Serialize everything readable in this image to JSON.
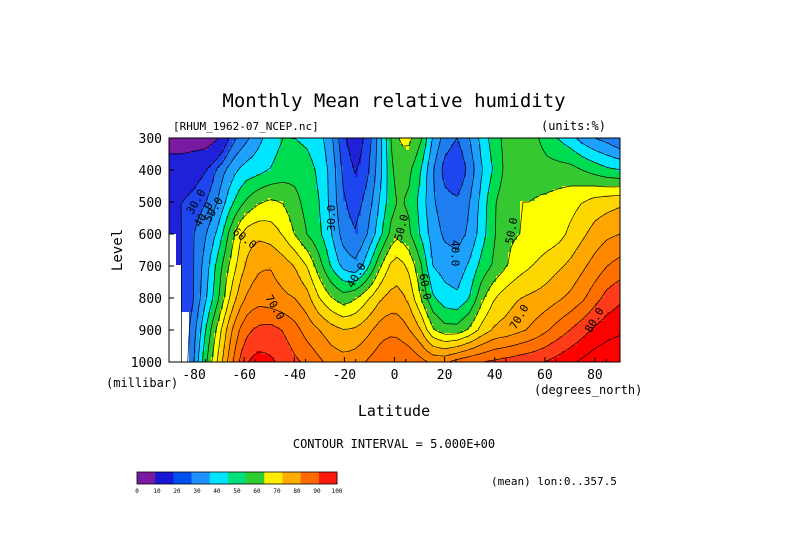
{
  "chart_data": {
    "type": "contour",
    "title": "Monthly Mean relative humidity",
    "file_label": "[RHUM_1962-07_NCEP.nc]",
    "units_label": "(units:%)",
    "xlabel": "Latitude",
    "x_units": "(degrees_north)",
    "ylabel": "Level",
    "y_units": "(millibar)",
    "xlim": [
      -90,
      90
    ],
    "ylim": [
      1000,
      300
    ],
    "x_ticks": [
      -80,
      -60,
      -40,
      -20,
      0,
      20,
      40,
      60,
      80
    ],
    "y_ticks": [
      300,
      400,
      500,
      600,
      700,
      800,
      900,
      1000
    ],
    "x_tick_labels": [
      "-80",
      "-60",
      "-40",
      "-20",
      "0",
      "20",
      "40",
      "60",
      "80"
    ],
    "y_tick_labels": [
      "300",
      "400",
      "500",
      "600",
      "700",
      "800",
      "900",
      "1000"
    ],
    "contour_interval_text": "CONTOUR INTERVAL = 5.000E+00",
    "mean_text": "(mean) lon:0..357.5",
    "contour_labels": [
      {
        "text": "30.0",
        "lat": -79,
        "lev": 500,
        "rot": -60
      },
      {
        "text": "40.0",
        "lat": -76,
        "lev": 540,
        "rot": -60
      },
      {
        "text": "50.0",
        "lat": -72,
        "lev": 525,
        "rot": -60
      },
      {
        "text": "60.0",
        "lat": -60,
        "lev": 615,
        "rot": 38
      },
      {
        "text": "70.0",
        "lat": -48,
        "lev": 830,
        "rot": 60
      },
      {
        "text": "30.0",
        "lat": -25,
        "lev": 550,
        "rot": -90
      },
      {
        "text": "40.0",
        "lat": -15,
        "lev": 730,
        "rot": -60
      },
      {
        "text": "50.0",
        "lat": 3,
        "lev": 580,
        "rot": -75
      },
      {
        "text": "60.0",
        "lat": 12,
        "lev": 765,
        "rot": 80
      },
      {
        "text": "40.0",
        "lat": 24,
        "lev": 660,
        "rot": 90
      },
      {
        "text": "50.0",
        "lat": 47,
        "lev": 590,
        "rot": -80
      },
      {
        "text": "70.0",
        "lat": 50,
        "lev": 860,
        "rot": -60
      },
      {
        "text": "80.0",
        "lat": 80,
        "lev": 870,
        "rot": -60
      }
    ],
    "colorbar": {
      "levels": [
        0,
        10,
        20,
        30,
        40,
        50,
        60,
        70,
        80,
        90,
        100
      ],
      "level_labels": [
        "0",
        "10",
        "20",
        "30",
        "40",
        "50",
        "60",
        "70",
        "80",
        "90",
        "100"
      ],
      "colors": [
        "#7a1aa0",
        "#1717d6",
        "#0050ef",
        "#1e90ff",
        "#00e4ff",
        "#00e07a",
        "#2ecc2e",
        "#ffee00",
        "#ffac00",
        "#ff6a00",
        "#ff1a10"
      ]
    },
    "fill_colors": [
      "#7a1aa0",
      "#2020d8",
      "#1e46f0",
      "#1e7ef0",
      "#1ea0ff",
      "#00e6ff",
      "#00dc50",
      "#35c830",
      "#ffff00",
      "#ffd700",
      "#ffa700",
      "#ff8800",
      "#ff6f00",
      "#ff3b1a",
      "#ff0000"
    ],
    "fill_thresholds": [
      15,
      25,
      30,
      35,
      40,
      45,
      50,
      55,
      60,
      65,
      70,
      75,
      80,
      85,
      90
    ],
    "field_grid": {
      "lats": [
        -90,
        -85,
        -80,
        -75,
        -70,
        -65,
        -60,
        -55,
        -50,
        -45,
        -40,
        -35,
        -30,
        -25,
        -20,
        -15,
        -10,
        -5,
        0,
        5,
        10,
        15,
        20,
        25,
        30,
        35,
        40,
        45,
        50,
        55,
        60,
        65,
        70,
        75,
        80,
        85,
        90
      ],
      "levels": [
        300,
        400,
        500,
        600,
        700,
        800,
        900,
        1000
      ],
      "values": [
        [
          10,
          10,
          10,
          10,
          15,
          28,
          33,
          38,
          42,
          45,
          45,
          44,
          42,
          36,
          25,
          22,
          28,
          40,
          54,
          57,
          52,
          40,
          33,
          30,
          35,
          42,
          48,
          52,
          54,
          52,
          48,
          45,
          42,
          38,
          35,
          33,
          30
        ],
        [
          20,
          20,
          22,
          25,
          32,
          38,
          42,
          43,
          45,
          47,
          48,
          47,
          44,
          38,
          28,
          24,
          30,
          40,
          52,
          52,
          46,
          36,
          28,
          25,
          32,
          40,
          46,
          52,
          55,
          54,
          52,
          52,
          52,
          50,
          48,
          46,
          45
        ],
        [
          25,
          25,
          27,
          30,
          36,
          44,
          50,
          54,
          56,
          55,
          52,
          48,
          45,
          38,
          30,
          28,
          33,
          42,
          50,
          50,
          44,
          36,
          32,
          31,
          35,
          42,
          50,
          53,
          55,
          55,
          56,
          57,
          58,
          60,
          62,
          63,
          64
        ],
        [
          22,
          25,
          30,
          35,
          42,
          53,
          62,
          64,
          63,
          60,
          55,
          50,
          46,
          40,
          32,
          30,
          36,
          45,
          54,
          52,
          45,
          38,
          34,
          33,
          36,
          43,
          50,
          54,
          55,
          56,
          57,
          58,
          61,
          64,
          67,
          69,
          70
        ],
        [
          20,
          25,
          30,
          38,
          48,
          57,
          65,
          69,
          70,
          68,
          65,
          60,
          52,
          44,
          38,
          36,
          45,
          56,
          63,
          60,
          52,
          40,
          38,
          37,
          41,
          47,
          51,
          55,
          58,
          60,
          62,
          64,
          66,
          69,
          72,
          75,
          77
        ],
        [
          20,
          25,
          30,
          40,
          50,
          62,
          70,
          73,
          72,
          71,
          70,
          67,
          60,
          55,
          52,
          55,
          60,
          65,
          67,
          65,
          56,
          46,
          42,
          41,
          45,
          54,
          60,
          63,
          65,
          66,
          67,
          69,
          71,
          74,
          78,
          82,
          84
        ],
        [
          20,
          25,
          33,
          46,
          58,
          70,
          78,
          81,
          82,
          80,
          77,
          73,
          70,
          67,
          65,
          66,
          69,
          73,
          74,
          71,
          66,
          56,
          52,
          52,
          56,
          62,
          66,
          67,
          69,
          71,
          74,
          77,
          80,
          83,
          86,
          88,
          89
        ],
        [
          20,
          25,
          35,
          50,
          62,
          74,
          84,
          87,
          86,
          84,
          81,
          79,
          76,
          73,
          72,
          73,
          76,
          79,
          80,
          80,
          77,
          74,
          74,
          77,
          79,
          80,
          81,
          82,
          83,
          84,
          85,
          87,
          89,
          91,
          93,
          94,
          95
        ]
      ]
    }
  }
}
